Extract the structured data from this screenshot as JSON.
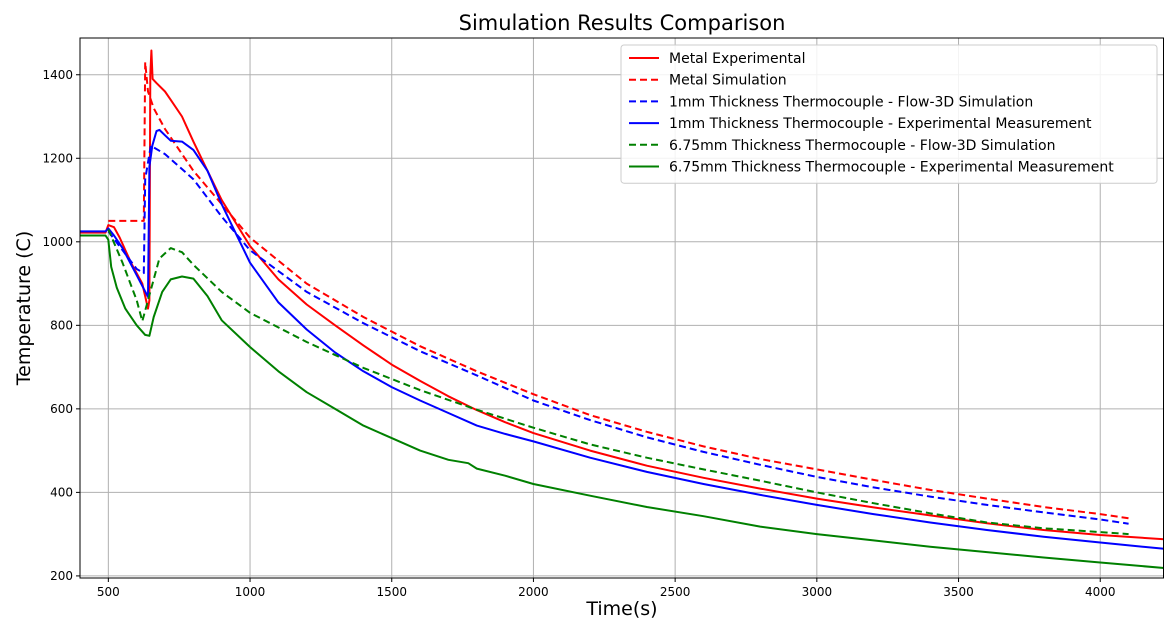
{
  "chart_data": {
    "type": "line",
    "title": "Simulation Results Comparison",
    "xlabel": "Time(s)",
    "ylabel": "Temperature (C)",
    "xlim": [
      400,
      4225
    ],
    "ylim": [
      195,
      1488
    ],
    "xticks": [
      500,
      1000,
      1500,
      2000,
      2500,
      3000,
      3500,
      4000
    ],
    "yticks": [
      200,
      400,
      600,
      800,
      1000,
      1200,
      1400
    ],
    "grid": true,
    "legend_position": "top-right",
    "series": [
      {
        "name": "Metal Experimental",
        "color": "#ff0000",
        "style": "solid",
        "points": [
          [
            400,
            1022
          ],
          [
            490,
            1022
          ],
          [
            500,
            1040
          ],
          [
            520,
            1035
          ],
          [
            540,
            1010
          ],
          [
            580,
            950
          ],
          [
            620,
            900
          ],
          [
            640,
            840
          ],
          [
            645,
            860
          ],
          [
            648,
            1400
          ],
          [
            652,
            1458
          ],
          [
            656,
            1390
          ],
          [
            670,
            1380
          ],
          [
            700,
            1360
          ],
          [
            720,
            1340
          ],
          [
            760,
            1300
          ],
          [
            800,
            1240
          ],
          [
            850,
            1170
          ],
          [
            900,
            1100
          ],
          [
            1000,
            990
          ],
          [
            1100,
            910
          ],
          [
            1200,
            850
          ],
          [
            1300,
            800
          ],
          [
            1400,
            752
          ],
          [
            1500,
            706
          ],
          [
            1600,
            667
          ],
          [
            1700,
            630
          ],
          [
            1800,
            597
          ],
          [
            1900,
            568
          ],
          [
            2000,
            542
          ],
          [
            2200,
            500
          ],
          [
            2400,
            464
          ],
          [
            2600,
            435
          ],
          [
            2800,
            409
          ],
          [
            3000,
            385
          ],
          [
            3200,
            364
          ],
          [
            3400,
            345
          ],
          [
            3600,
            326
          ],
          [
            3800,
            310
          ],
          [
            4000,
            298
          ],
          [
            4225,
            288
          ]
        ]
      },
      {
        "name": "Metal Simulation",
        "color": "#ff0000",
        "style": "dashed",
        "points": [
          [
            500,
            1050
          ],
          [
            625,
            1050
          ],
          [
            630,
            1430
          ],
          [
            640,
            1360
          ],
          [
            660,
            1320
          ],
          [
            700,
            1270
          ],
          [
            750,
            1220
          ],
          [
            800,
            1170
          ],
          [
            900,
            1090
          ],
          [
            1000,
            1010
          ],
          [
            1200,
            900
          ],
          [
            1400,
            820
          ],
          [
            1600,
            750
          ],
          [
            1800,
            690
          ],
          [
            2000,
            635
          ],
          [
            2200,
            585
          ],
          [
            2400,
            545
          ],
          [
            2600,
            510
          ],
          [
            2800,
            480
          ],
          [
            3000,
            455
          ],
          [
            3200,
            430
          ],
          [
            3400,
            406
          ],
          [
            3600,
            385
          ],
          [
            3800,
            365
          ],
          [
            4000,
            348
          ],
          [
            4100,
            338
          ]
        ]
      },
      {
        "name": "1mm Thickness Thermocouple - Flow-3D Simulation",
        "color": "#0000ff",
        "style": "dashed",
        "points": [
          [
            500,
            1025
          ],
          [
            550,
            980
          ],
          [
            600,
            935
          ],
          [
            625,
            925
          ],
          [
            630,
            1150
          ],
          [
            650,
            1230
          ],
          [
            700,
            1210
          ],
          [
            800,
            1150
          ],
          [
            900,
            1060
          ],
          [
            1000,
            980
          ],
          [
            1200,
            880
          ],
          [
            1400,
            805
          ],
          [
            1600,
            738
          ],
          [
            1800,
            680
          ],
          [
            2000,
            620
          ],
          [
            2200,
            573
          ],
          [
            2400,
            532
          ],
          [
            2600,
            497
          ],
          [
            2800,
            466
          ],
          [
            3000,
            437
          ],
          [
            3200,
            412
          ],
          [
            3400,
            390
          ],
          [
            3600,
            370
          ],
          [
            3800,
            352
          ],
          [
            4000,
            335
          ],
          [
            4100,
            325
          ]
        ]
      },
      {
        "name": "1mm Thickness Thermocouple - Experimental Measurement",
        "color": "#0000ff",
        "style": "solid",
        "points": [
          [
            400,
            1025
          ],
          [
            490,
            1025
          ],
          [
            500,
            1032
          ],
          [
            520,
            1015
          ],
          [
            550,
            985
          ],
          [
            600,
            920
          ],
          [
            640,
            868
          ],
          [
            645,
            1180
          ],
          [
            655,
            1230
          ],
          [
            670,
            1265
          ],
          [
            680,
            1268
          ],
          [
            700,
            1255
          ],
          [
            720,
            1242
          ],
          [
            760,
            1240
          ],
          [
            800,
            1220
          ],
          [
            850,
            1170
          ],
          [
            900,
            1090
          ],
          [
            1000,
            950
          ],
          [
            1100,
            855
          ],
          [
            1200,
            790
          ],
          [
            1300,
            735
          ],
          [
            1400,
            690
          ],
          [
            1500,
            652
          ],
          [
            1600,
            620
          ],
          [
            1700,
            590
          ],
          [
            1800,
            560
          ],
          [
            1900,
            540
          ],
          [
            2000,
            522
          ],
          [
            2200,
            483
          ],
          [
            2400,
            449
          ],
          [
            2600,
            420
          ],
          [
            2800,
            394
          ],
          [
            3000,
            370
          ],
          [
            3200,
            348
          ],
          [
            3400,
            328
          ],
          [
            3600,
            310
          ],
          [
            3800,
            294
          ],
          [
            4000,
            280
          ],
          [
            4225,
            265
          ]
        ]
      },
      {
        "name": "6.75mm Thickness Thermocouple - Flow-3D Simulation",
        "color": "#008000",
        "style": "dashed",
        "points": [
          [
            500,
            1030
          ],
          [
            550,
            950
          ],
          [
            600,
            860
          ],
          [
            620,
            810
          ],
          [
            640,
            860
          ],
          [
            680,
            960
          ],
          [
            720,
            985
          ],
          [
            760,
            975
          ],
          [
            800,
            945
          ],
          [
            900,
            880
          ],
          [
            1000,
            830
          ],
          [
            1200,
            760
          ],
          [
            1400,
            698
          ],
          [
            1600,
            645
          ],
          [
            1800,
            598
          ],
          [
            2000,
            555
          ],
          [
            2200,
            515
          ],
          [
            2400,
            483
          ],
          [
            2600,
            455
          ],
          [
            2800,
            428
          ],
          [
            3000,
            400
          ],
          [
            3200,
            374
          ],
          [
            3400,
            350
          ],
          [
            3600,
            328
          ],
          [
            3800,
            314
          ],
          [
            4000,
            305
          ],
          [
            4100,
            300
          ]
        ]
      },
      {
        "name": "6.75mm Thickness Thermocouple - Experimental Measurement",
        "color": "#008000",
        "style": "solid",
        "points": [
          [
            400,
            1015
          ],
          [
            490,
            1015
          ],
          [
            500,
            1005
          ],
          [
            510,
            940
          ],
          [
            530,
            890
          ],
          [
            560,
            840
          ],
          [
            600,
            800
          ],
          [
            630,
            777
          ],
          [
            645,
            775
          ],
          [
            660,
            820
          ],
          [
            690,
            880
          ],
          [
            720,
            910
          ],
          [
            760,
            917
          ],
          [
            800,
            912
          ],
          [
            850,
            870
          ],
          [
            900,
            812
          ],
          [
            1000,
            748
          ],
          [
            1100,
            690
          ],
          [
            1200,
            640
          ],
          [
            1300,
            600
          ],
          [
            1400,
            560
          ],
          [
            1500,
            530
          ],
          [
            1600,
            500
          ],
          [
            1700,
            478
          ],
          [
            1770,
            470
          ],
          [
            1800,
            457
          ],
          [
            1900,
            440
          ],
          [
            2000,
            420
          ],
          [
            2200,
            392
          ],
          [
            2400,
            365
          ],
          [
            2600,
            343
          ],
          [
            2800,
            318
          ],
          [
            3000,
            300
          ],
          [
            3200,
            285
          ],
          [
            3400,
            270
          ],
          [
            3600,
            257
          ],
          [
            3800,
            244
          ],
          [
            4000,
            232
          ],
          [
            4225,
            219
          ]
        ]
      }
    ]
  }
}
